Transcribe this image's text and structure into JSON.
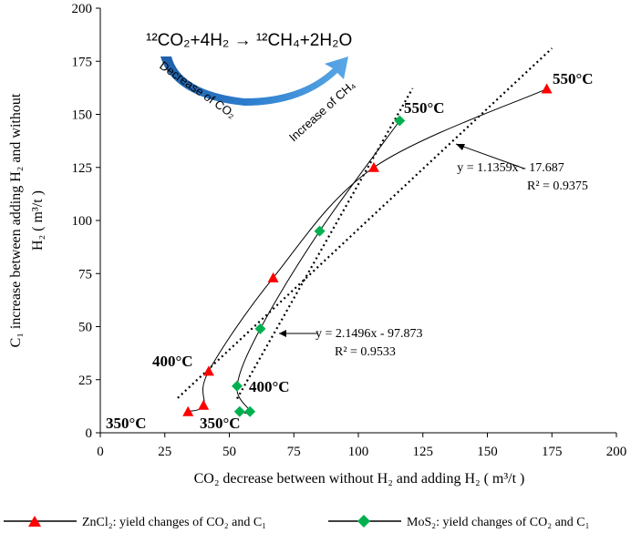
{
  "chart_data": {
    "type": "scatter",
    "xlabel": "CO₂ decrease between without H₂ and adding H₂ ( m³/t )",
    "ylabel_line1": "C₁ increase between adding H₂ and without",
    "ylabel_line2": "H₂ ( m³/t )",
    "xlim": [
      0,
      200
    ],
    "ylim": [
      0,
      200
    ],
    "xticks": [
      0,
      25,
      50,
      75,
      100,
      125,
      150,
      175,
      200
    ],
    "yticks": [
      0,
      25,
      50,
      75,
      100,
      125,
      150,
      175,
      200
    ],
    "grid": false,
    "legend_position": "bottom",
    "series": [
      {
        "name": "ZnCl₂: yield changes of CO₂ and C₁",
        "marker": "triangle",
        "color": "#ff0000",
        "x": [
          34,
          40,
          42,
          67,
          106,
          173
        ],
        "y": [
          10,
          13,
          29,
          73,
          125,
          162
        ],
        "trend": {
          "slope": 1.1359,
          "intercept": -17.687,
          "x_range": [
            30,
            175
          ]
        },
        "equation": "y = 1.1359x - 17.687",
        "r2": "R² = 0.9375"
      },
      {
        "name": "MoS₂: yield changes of CO₂ and C₁",
        "marker": "diamond",
        "color": "#00b050",
        "x": [
          54,
          58,
          53,
          62,
          85,
          116
        ],
        "y": [
          10,
          10,
          22,
          49,
          95,
          147
        ],
        "trend": {
          "slope": 2.1496,
          "intercept": -97.873,
          "x_range": [
            53,
            121
          ]
        },
        "equation": "y = 2.1496x - 97.873",
        "r2": "R² = 0.9533"
      }
    ],
    "annotations": {
      "temp_350_a": "350°C",
      "temp_350_b": "350°C",
      "temp_400_a": "400°C",
      "temp_400_b": "400°C",
      "temp_550_a": "550°C",
      "temp_550_b": "550°C"
    },
    "reaction": {
      "equation": "¹²CO₂+4H₂ → ¹²CH₄+2H₂O",
      "left_label": "Decrease of CO₂",
      "right_label": "Increase of CH₄"
    }
  }
}
